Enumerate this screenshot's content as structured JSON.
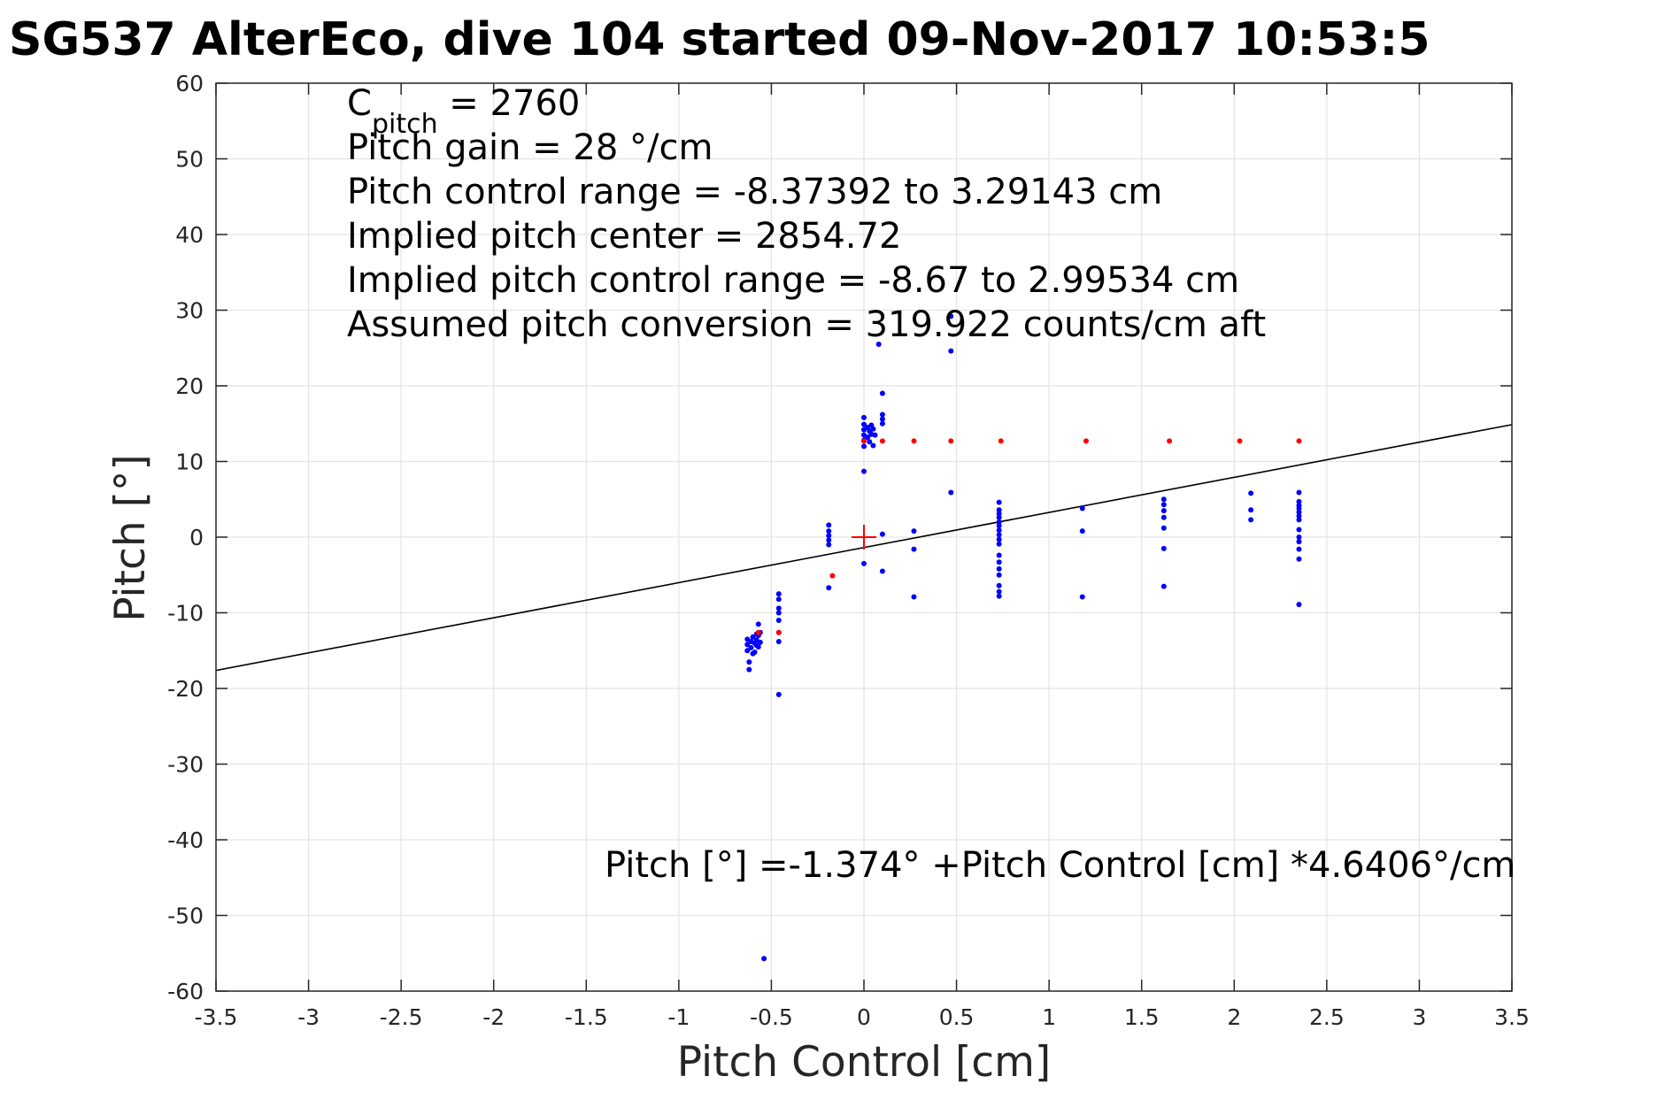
{
  "chart_data": {
    "type": "scatter",
    "title": "SG537 AlterEco, dive 104 started 09-Nov-2017 10:53:5",
    "xlabel": "Pitch Control [cm]",
    "ylabel": "Pitch [°]",
    "xlim": [
      -3.5,
      3.5
    ],
    "ylim": [
      -60,
      60
    ],
    "x_ticks": [
      -3.5,
      -3,
      -2.5,
      -2,
      -1.5,
      -1,
      -0.5,
      0,
      0.5,
      1,
      1.5,
      2,
      2.5,
      3,
      3.5
    ],
    "x_tick_labels": [
      "-3.5",
      "-3",
      "-2.5",
      "-2",
      "-1.5",
      "-1",
      "-0.5",
      "0",
      "0.5",
      "1",
      "1.5",
      "2",
      "2.5",
      "3",
      "3.5"
    ],
    "y_ticks": [
      -60,
      -50,
      -40,
      -30,
      -20,
      -10,
      0,
      10,
      20,
      30,
      40,
      50,
      60
    ],
    "y_tick_labels": [
      "-60",
      "-50",
      "-40",
      "-30",
      "-20",
      "-10",
      "0",
      "10",
      "20",
      "30",
      "40",
      "50",
      "60"
    ],
    "grid": true,
    "colors": {
      "observed": "#0000ff",
      "binned": "#ff0000",
      "fit": "#000000",
      "center_marker": "#ff0000",
      "grid": "#e3e3e3",
      "axes": "#262626"
    },
    "annotation_lines": [
      {
        "main": "C",
        "sub": "pitch",
        "rest": " = 2760"
      },
      {
        "main": "Pitch gain = 28 °/cm"
      },
      {
        "main": "Pitch control range = -8.37392 to 3.29143 cm"
      },
      {
        "main": "Implied pitch center = 2854.72"
      },
      {
        "main": "Implied pitch control range = -8.67 to 2.99534 cm"
      },
      {
        "main": "Assumed pitch conversion = 319.922 counts/cm aft"
      }
    ],
    "fit_label": "Pitch [°] =-1.374° +Pitch Control [cm] *4.6406°/cm",
    "fit": {
      "intercept": -1.374,
      "slope": 4.6406,
      "x_range": [
        -3.5,
        3.5
      ]
    },
    "center_marker": {
      "x": 0,
      "y": 0
    },
    "series": [
      {
        "values_xy": [
          [
            -0.63,
            -13.5
          ],
          [
            -0.63,
            -14.2
          ],
          [
            -0.63,
            -15.0
          ],
          [
            -0.62,
            -16.5
          ],
          [
            -0.62,
            -17.5
          ],
          [
            -0.61,
            -13.8
          ],
          [
            -0.61,
            -14.6
          ],
          [
            -0.6,
            -15.4
          ],
          [
            -0.6,
            -13.2
          ],
          [
            -0.59,
            -14.0
          ],
          [
            -0.59,
            -15.2
          ],
          [
            -0.58,
            -12.8
          ],
          [
            -0.58,
            -13.6
          ],
          [
            -0.58,
            -14.3
          ],
          [
            -0.57,
            -11.5
          ],
          [
            -0.57,
            -13.0
          ],
          [
            -0.57,
            -14.5
          ],
          [
            -0.56,
            -12.6
          ],
          [
            -0.56,
            -13.9
          ],
          [
            -0.46,
            -7.5
          ],
          [
            -0.46,
            -8.2
          ],
          [
            -0.46,
            -9.4
          ],
          [
            -0.46,
            -10.0
          ],
          [
            -0.46,
            -11.0
          ],
          [
            -0.46,
            -12.6
          ],
          [
            -0.46,
            -13.8
          ],
          [
            -0.46,
            -20.8
          ],
          [
            -0.54,
            -55.7
          ],
          [
            -0.19,
            1.6
          ],
          [
            -0.19,
            0.8
          ],
          [
            -0.19,
            0.2
          ],
          [
            -0.19,
            -0.4
          ],
          [
            -0.19,
            -1.0
          ],
          [
            -0.19,
            -6.7
          ],
          [
            0.0,
            15.8
          ],
          [
            0.0,
            14.9
          ],
          [
            0.0,
            14.2
          ],
          [
            0.0,
            13.5
          ],
          [
            0.0,
            12.8
          ],
          [
            0.0,
            12.0
          ],
          [
            0.0,
            8.7
          ],
          [
            0.0,
            -3.5
          ],
          [
            0.02,
            14.5
          ],
          [
            0.02,
            13.2
          ],
          [
            0.03,
            14.0
          ],
          [
            0.03,
            12.6
          ],
          [
            0.04,
            14.8
          ],
          [
            0.04,
            13.6
          ],
          [
            0.05,
            14.3
          ],
          [
            0.05,
            12.1
          ],
          [
            0.06,
            13.5
          ],
          [
            0.08,
            25.5
          ],
          [
            0.1,
            19.0
          ],
          [
            0.1,
            16.2
          ],
          [
            0.1,
            15.6
          ],
          [
            0.1,
            15.0
          ],
          [
            0.1,
            0.4
          ],
          [
            0.1,
            -4.5
          ],
          [
            0.27,
            0.8
          ],
          [
            0.27,
            -1.6
          ],
          [
            0.27,
            -7.9
          ],
          [
            0.47,
            29.2
          ],
          [
            0.47,
            24.6
          ],
          [
            0.47,
            5.9
          ],
          [
            0.73,
            4.6
          ],
          [
            0.73,
            3.6
          ],
          [
            0.73,
            3.1
          ],
          [
            0.73,
            2.6
          ],
          [
            0.73,
            2.0
          ],
          [
            0.73,
            1.5
          ],
          [
            0.73,
            0.9
          ],
          [
            0.73,
            0.3
          ],
          [
            0.73,
            -0.3
          ],
          [
            0.73,
            -0.9
          ],
          [
            0.73,
            -2.4
          ],
          [
            0.73,
            -3.3
          ],
          [
            0.73,
            -4.2
          ],
          [
            0.73,
            -5.0
          ],
          [
            0.73,
            -6.4
          ],
          [
            0.73,
            -7.2
          ],
          [
            0.73,
            -7.8
          ],
          [
            1.18,
            3.8
          ],
          [
            1.18,
            0.8
          ],
          [
            1.18,
            -7.9
          ],
          [
            1.62,
            5.0
          ],
          [
            1.62,
            4.3
          ],
          [
            1.62,
            3.5
          ],
          [
            1.62,
            2.6
          ],
          [
            1.62,
            1.2
          ],
          [
            1.62,
            -1.5
          ],
          [
            1.62,
            -6.5
          ],
          [
            2.09,
            5.8
          ],
          [
            2.09,
            3.6
          ],
          [
            2.09,
            2.3
          ],
          [
            2.35,
            5.9
          ],
          [
            2.35,
            4.7
          ],
          [
            2.35,
            4.2
          ],
          [
            2.35,
            3.8
          ],
          [
            2.35,
            3.3
          ],
          [
            2.35,
            2.8
          ],
          [
            2.35,
            2.3
          ],
          [
            2.35,
            1.0
          ],
          [
            2.35,
            0.0
          ],
          [
            2.35,
            -0.6
          ],
          [
            2.35,
            -1.6
          ],
          [
            2.35,
            -2.9
          ],
          [
            2.35,
            -8.9
          ]
        ]
      },
      {
        "values_xy": [
          [
            -0.57,
            -12.6
          ],
          [
            -0.46,
            -12.6
          ],
          [
            -0.17,
            -5.1
          ],
          [
            0.0,
            12.7
          ],
          [
            0.1,
            12.7
          ],
          [
            0.27,
            12.7
          ],
          [
            0.47,
            12.7
          ],
          [
            0.74,
            12.7
          ],
          [
            1.2,
            12.7
          ],
          [
            1.65,
            12.7
          ],
          [
            2.03,
            12.7
          ],
          [
            2.35,
            12.7
          ]
        ]
      }
    ]
  }
}
